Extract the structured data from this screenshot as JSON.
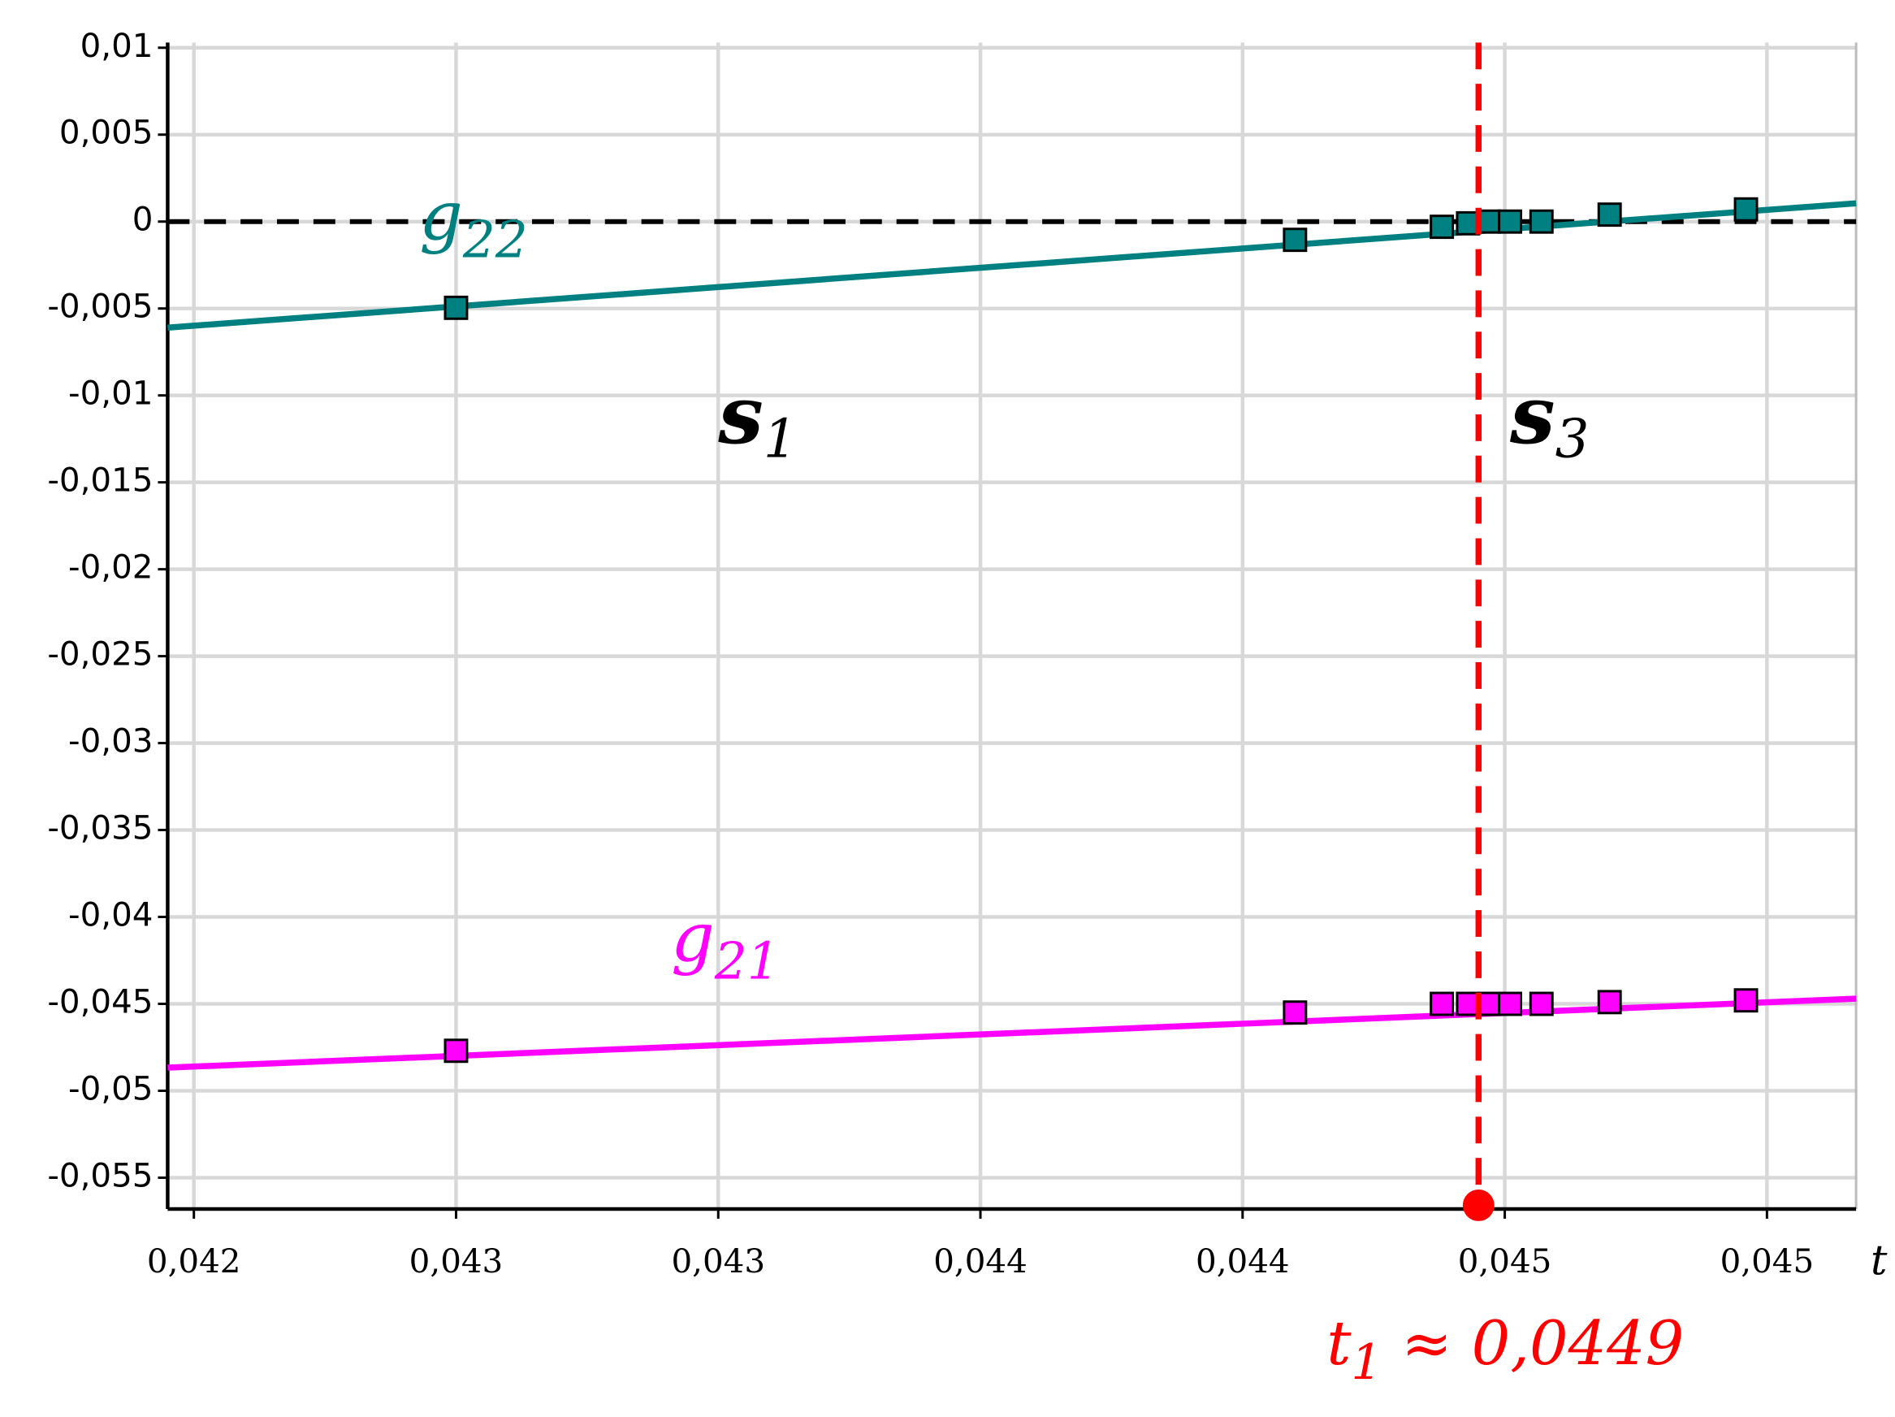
{
  "chart_data": {
    "type": "line",
    "xlim": [
      0.0424,
      0.04562
    ],
    "ylim": [
      -0.0568,
      0.0103
    ],
    "xticks": [
      {
        "value": 0.04245,
        "label": "0,042"
      },
      {
        "value": 0.04295,
        "label": "0,043"
      },
      {
        "value": 0.04345,
        "label": "0,043"
      },
      {
        "value": 0.04395,
        "label": "0,044"
      },
      {
        "value": 0.04445,
        "label": "0,044"
      },
      {
        "value": 0.04495,
        "label": "0,045"
      },
      {
        "value": 0.04545,
        "label": "0,045"
      }
    ],
    "yticks": [
      {
        "value": 0.01,
        "label": "0,01"
      },
      {
        "value": 0.005,
        "label": "0,005"
      },
      0,
      {
        "value": -0.005,
        "label": "-0,005"
      },
      {
        "value": -0.01,
        "label": "-0,01"
      },
      {
        "value": -0.015,
        "label": "-0,015"
      },
      {
        "value": -0.02,
        "label": "-0,02"
      },
      {
        "value": -0.025,
        "label": "-0,025"
      },
      {
        "value": -0.03,
        "label": "-0,03"
      },
      {
        "value": -0.035,
        "label": "-0,035"
      },
      {
        "value": -0.04,
        "label": "-0,04"
      },
      {
        "value": -0.045,
        "label": "-0,045"
      },
      {
        "value": -0.05,
        "label": "-0,05"
      },
      {
        "value": -0.055,
        "label": "-0,055"
      }
    ],
    "grid": true,
    "x_label": "t",
    "zero_line": {
      "value": 0,
      "color": "#000000"
    },
    "series": [
      {
        "color": "#008080",
        "x": [
          0.0424,
          0.04562
        ],
        "values": [
          -0.0061,
          0.00105
        ],
        "points_x": [
          0.04295,
          0.04455,
          0.04483,
          0.04488,
          0.04492,
          0.04496,
          0.04502,
          0.04515,
          0.04541
        ],
        "points": [
          -0.00496,
          -0.00105,
          -0.0003,
          -0.0001,
          0,
          0,
          0,
          0.0004,
          0.0007
        ]
      },
      {
        "color": "#ff00ff",
        "x": [
          0.0424,
          0.04562
        ],
        "values": [
          -0.04867,
          -0.0447
        ],
        "points_x": [
          0.04295,
          0.04455,
          0.04483,
          0.04488,
          0.04492,
          0.04496,
          0.04502,
          0.04515,
          0.04541
        ],
        "points": [
          -0.0477,
          -0.0455,
          -0.045,
          -0.045,
          -0.045,
          -0.045,
          -0.045,
          -0.0449,
          -0.0448
        ]
      }
    ],
    "marker_line": {
      "x": 0.0449,
      "color": "#ff0000",
      "label": {
        "text": "t",
        "subscript": "1",
        "rest": " ≈ 0,0449"
      }
    },
    "annotations": [
      {
        "text": "g",
        "subscript": "22",
        "x": 0.04288,
        "y": 0,
        "color": "#008080"
      },
      {
        "text": "g",
        "subscript": "21",
        "x": 0.04336,
        "y": -0.0415,
        "color": "#ff00ff"
      },
      {
        "text": "s",
        "subscript": "1",
        "x": 0.04345,
        "y": -0.0115,
        "color": "#000000"
      },
      {
        "text": "s",
        "subscript": "3",
        "x": 0.04496,
        "y": -0.0115,
        "color": "#000000"
      }
    ]
  }
}
